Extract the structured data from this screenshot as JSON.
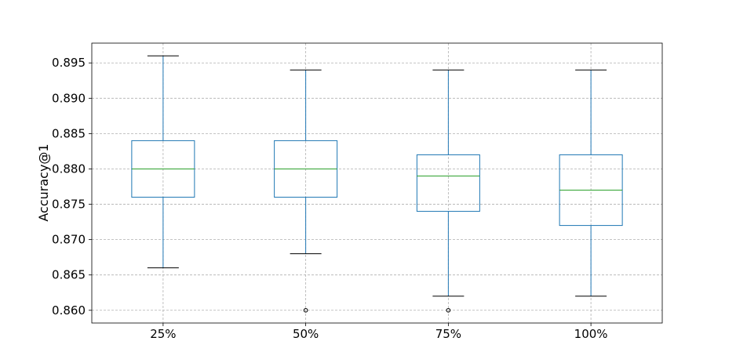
{
  "chart_data": {
    "type": "box",
    "title": "",
    "xlabel": "",
    "ylabel": "Accuracy@1",
    "categories": [
      "25%",
      "50%",
      "75%",
      "100%"
    ],
    "ylim": [
      0.8582,
      0.8978
    ],
    "yticks": [
      "0.860",
      "0.865",
      "0.870",
      "0.875",
      "0.880",
      "0.885",
      "0.890",
      "0.895"
    ],
    "ytick_values": [
      0.86,
      0.865,
      0.87,
      0.875,
      0.88,
      0.885,
      0.89,
      0.895
    ],
    "grid": true,
    "boxes": [
      {
        "category": "25%",
        "whisker_low": 0.866,
        "q1": 0.876,
        "median": 0.88,
        "q3": 0.884,
        "whisker_high": 0.896,
        "outliers": []
      },
      {
        "category": "50%",
        "whisker_low": 0.868,
        "q1": 0.876,
        "median": 0.88,
        "q3": 0.884,
        "whisker_high": 0.894,
        "outliers": [
          0.86
        ]
      },
      {
        "category": "75%",
        "whisker_low": 0.862,
        "q1": 0.874,
        "median": 0.879,
        "q3": 0.882,
        "whisker_high": 0.894,
        "outliers": [
          0.86
        ]
      },
      {
        "category": "100%",
        "whisker_low": 0.862,
        "q1": 0.872,
        "median": 0.877,
        "q3": 0.882,
        "whisker_high": 0.894,
        "outliers": []
      }
    ],
    "colors": {
      "box": "#1f77b4",
      "median": "#2ca02c",
      "whisker_cap": "#000000",
      "outlier": "#000000"
    }
  }
}
